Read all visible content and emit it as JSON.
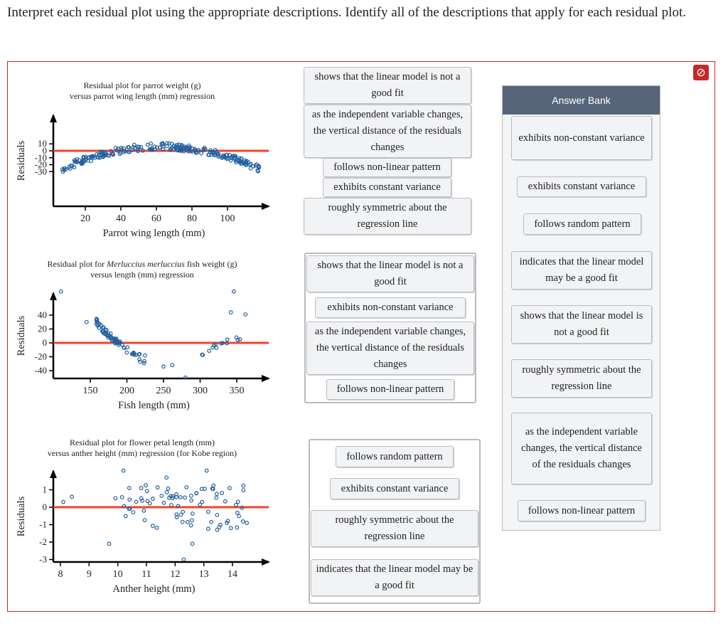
{
  "prompt": "Interpret each residual plot using the appropriate descriptions. Identify all of the descriptions that apply for each residual plot.",
  "colors": {
    "accent_red": "#f2442a",
    "point_blue": "#1f5f9e",
    "bank_header": "#57657a",
    "frame_red": "#c62828"
  },
  "icons": {
    "blocked": "no-entry-icon"
  },
  "plots": [
    {
      "title1": "Residual plot for parrot weight (g)",
      "title2": "versus parrot wing length (mm) regression",
      "ylabel": "Residuals",
      "xlabel": "Parrot wing length (mm)",
      "xticks": [
        "20",
        "40",
        "60",
        "80",
        "100"
      ],
      "yticks": [
        "10",
        "0",
        "-10",
        "-20",
        "-30"
      ]
    },
    {
      "title1a": "Residual plot for ",
      "title1b": "Merluccius merluccius",
      "title1c": " fish weight (g)",
      "title2": "versus length (mm) regression",
      "ylabel": "Residuals",
      "xlabel": "Fish length (mm)",
      "xticks": [
        "150",
        "200",
        "250",
        "300",
        "350"
      ],
      "yticks": [
        "40",
        "20",
        "0",
        "-20",
        "-40"
      ]
    },
    {
      "title1": "Residual plot for flower petal length (mm)",
      "title2": "versus anther height (mm) regression (for Kobe region)",
      "ylabel": "Residuals",
      "xlabel": "Anther height (mm)",
      "xticks": [
        "8",
        "9",
        "10",
        "11",
        "12",
        "13",
        "14"
      ],
      "yticks": [
        "1",
        "0",
        "-1",
        "-2",
        "-3"
      ]
    }
  ],
  "zones": [
    [
      "shows that the linear model is not a good fit",
      "as the independent variable changes, the vertical distance of the residuals changes",
      "follows non-linear pattern",
      "exhibits constant variance",
      "roughly symmetric about the regression line"
    ],
    [
      "shows that the linear model is not a good fit",
      "exhibits non-constant variance",
      "as the independent variable changes, the vertical distance of the residuals changes",
      "follows non-linear pattern"
    ],
    [
      "follows random pattern",
      "exhibits constant variance",
      "roughly symmetric about the regression line",
      "indicates that the linear model may be a good fit"
    ]
  ],
  "bank": {
    "header": "Answer Bank",
    "items": [
      "exhibits non-constant variance",
      "exhibits constant variance",
      "follows random pattern",
      "indicates that the linear model may be a good fit",
      "shows that the linear model is not a good fit",
      "roughly symmetric about the regression line",
      "as the independent variable changes, the vertical distance of the residuals changes",
      "follows non-linear pattern"
    ]
  }
}
